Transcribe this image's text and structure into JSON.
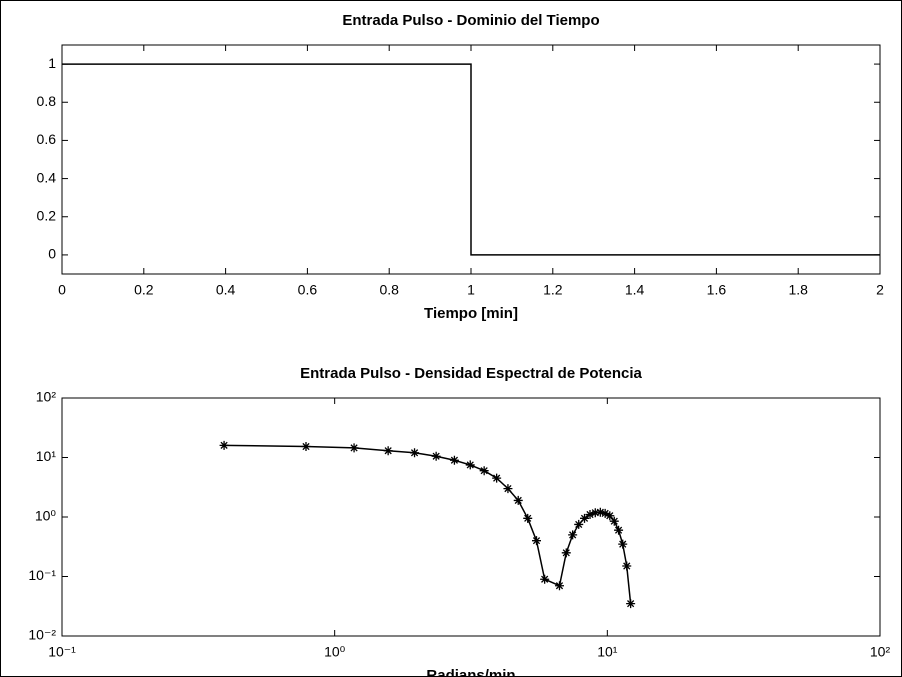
{
  "chart_data": [
    {
      "type": "line",
      "title": "Entrada Pulso - Dominio del Tiempo",
      "x_label": "Tiempo [min]",
      "x": [
        0,
        1,
        1,
        2
      ],
      "values": [
        1,
        1,
        0,
        0
      ],
      "color": "#000000",
      "xlim": [
        0,
        2
      ],
      "ylim": [
        -0.1,
        1.1
      ],
      "xticks": [
        0,
        0.2,
        0.4,
        0.6,
        0.8,
        1,
        1.2,
        1.4,
        1.6,
        1.8,
        2
      ],
      "yticks": [
        0,
        0.2,
        0.4,
        0.6,
        0.8,
        1
      ]
    },
    {
      "type": "line",
      "title": "Entrada Pulso - Densidad Espectral de Potencia",
      "x_label": "Radians/min",
      "x": [
        0.393,
        0.785,
        1.178,
        1.571,
        1.963,
        2.356,
        2.749,
        3.142,
        3.534,
        3.927,
        4.32,
        4.712,
        5.105,
        5.498,
        5.89,
        6.676,
        7.069,
        7.461,
        7.854,
        8.247,
        8.639,
        9.032,
        9.425,
        9.817,
        10.21,
        10.603,
        10.996,
        11.388,
        11.781,
        12.174
      ],
      "values": [
        16,
        15.3,
        14.5,
        13,
        12,
        10.5,
        9,
        7.5,
        6,
        4.5,
        3,
        1.9,
        0.95,
        0.4,
        0.09,
        0.07,
        0.25,
        0.5,
        0.75,
        0.95,
        1.1,
        1.18,
        1.2,
        1.15,
        1.05,
        0.85,
        0.6,
        0.35,
        0.15,
        0.035
      ],
      "color": "#000000",
      "marker": "star",
      "log_x": true,
      "log_y": true,
      "xlim": [
        0.1,
        100
      ],
      "ylim": [
        0.01,
        100
      ],
      "xticks": [
        {
          "value": 0.1,
          "label": "10⁻¹"
        },
        {
          "value": 1,
          "label": "10⁰"
        },
        {
          "value": 10,
          "label": "10¹"
        },
        {
          "value": 100,
          "label": "10²"
        }
      ],
      "yticks": [
        {
          "value": 0.01,
          "label": "10⁻²"
        },
        {
          "value": 0.1,
          "label": "10⁻¹"
        },
        {
          "value": 1,
          "label": "10⁰"
        },
        {
          "value": 10,
          "label": "10¹"
        },
        {
          "value": 100,
          "label": "10²"
        }
      ]
    }
  ]
}
